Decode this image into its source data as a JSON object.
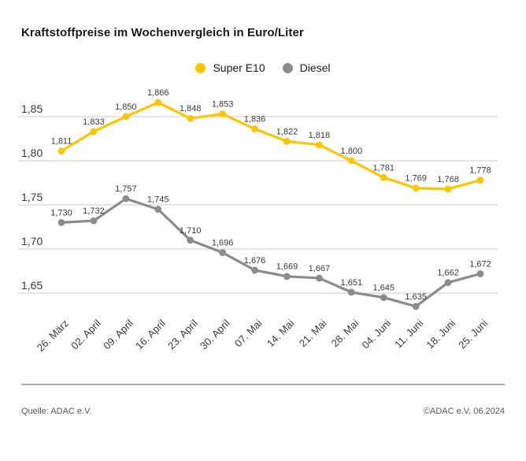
{
  "title": "Kraftstoffpreise im Wochenvergleich in Euro/Liter",
  "legend": [
    {
      "label": "Super E10",
      "color": "#FBC600"
    },
    {
      "label": "Diesel",
      "color": "#8C8C8C"
    }
  ],
  "chart_data": {
    "type": "line",
    "title": "Kraftstoffpreise im Wochenvergleich in Euro/Liter",
    "unit": "Euro/Liter",
    "categories": [
      "26. März",
      "02. April",
      "09. April",
      "16. April",
      "23. April",
      "30. April",
      "07. Mai",
      "14. Mai",
      "21. Mai",
      "28. Mai",
      "04. Juni",
      "11. Juni",
      "18. Juni",
      "25. Juni"
    ],
    "series": [
      {
        "name": "Super E10",
        "color": "#FBC600",
        "values": [
          1.811,
          1.833,
          1.85,
          1.866,
          1.848,
          1.853,
          1.836,
          1.822,
          1.818,
          1.8,
          1.781,
          1.769,
          1.768,
          1.778
        ]
      },
      {
        "name": "Diesel",
        "color": "#8C8C8C",
        "values": [
          1.73,
          1.732,
          1.757,
          1.745,
          1.71,
          1.696,
          1.676,
          1.669,
          1.667,
          1.651,
          1.645,
          1.635,
          1.662,
          1.672
        ]
      }
    ],
    "yticks": [
      1.85,
      1.8,
      1.75,
      1.7,
      1.65
    ],
    "ylim": [
      1.62,
      1.88
    ],
    "grid": true,
    "legend_position": "top-center",
    "decimal_separator": ",",
    "colors": {
      "gridline": "#CBCBCB",
      "tick_label": "#3A3A3A",
      "data_label": "#3A3A3A"
    }
  },
  "footer": {
    "source": "Quelle: ADAC e.V.",
    "copyright": "©ADAC e.V. 06.2024"
  }
}
